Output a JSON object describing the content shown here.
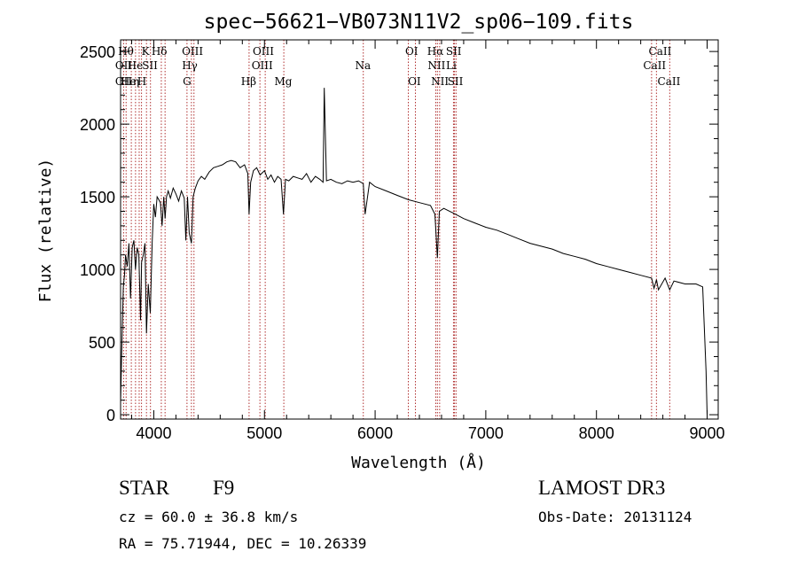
{
  "chart_data": {
    "type": "line",
    "title": "spec−56621−VB073N11V2_sp06−109.fits",
    "xlabel": "Wavelength (Å)",
    "ylabel": "Flux (relative)",
    "xlim": [
      3700,
      9100
    ],
    "ylim": [
      -30,
      2580
    ],
    "xticks": [
      4000,
      5000,
      6000,
      7000,
      8000,
      9000
    ],
    "yticks": [
      0,
      500,
      1000,
      1500,
      2000,
      2500
    ],
    "series": [
      {
        "name": "flux",
        "x": [
          3700,
          3710,
          3725,
          3735,
          3745,
          3760,
          3775,
          3790,
          3805,
          3820,
          3835,
          3850,
          3865,
          3880,
          3890,
          3905,
          3920,
          3934,
          3950,
          3968,
          3985,
          4000,
          4015,
          4030,
          4045,
          4060,
          4075,
          4090,
          4102,
          4115,
          4130,
          4150,
          4175,
          4200,
          4225,
          4250,
          4275,
          4290,
          4305,
          4320,
          4340,
          4355,
          4375,
          4400,
          4430,
          4460,
          4500,
          4540,
          4580,
          4620,
          4660,
          4700,
          4740,
          4780,
          4820,
          4850,
          4861,
          4875,
          4900,
          4930,
          4960,
          5000,
          5030,
          5060,
          5090,
          5120,
          5150,
          5172,
          5190,
          5220,
          5260,
          5300,
          5340,
          5380,
          5420,
          5460,
          5500,
          5530,
          5540,
          5560,
          5600,
          5650,
          5700,
          5750,
          5800,
          5850,
          5893,
          5910,
          5950,
          6000,
          6100,
          6200,
          6300,
          6400,
          6500,
          6540,
          6563,
          6580,
          6620,
          6700,
          6800,
          6900,
          7000,
          7100,
          7200,
          7300,
          7400,
          7500,
          7600,
          7700,
          7800,
          7900,
          8000,
          8100,
          8200,
          8300,
          8400,
          8498,
          8520,
          8542,
          8560,
          8620,
          8662,
          8700,
          8800,
          8900,
          8960,
          8990,
          9000
        ],
        "y": [
          80,
          420,
          880,
          960,
          1100,
          1020,
          1180,
          800,
          1150,
          1200,
          1000,
          1150,
          1100,
          650,
          1050,
          1100,
          1180,
          560,
          900,
          700,
          1180,
          1450,
          1360,
          1500,
          1480,
          1460,
          1300,
          1500,
          1350,
          1500,
          1540,
          1490,
          1560,
          1520,
          1470,
          1540,
          1490,
          1200,
          1500,
          1250,
          1180,
          1500,
          1560,
          1610,
          1640,
          1620,
          1670,
          1700,
          1710,
          1720,
          1740,
          1750,
          1740,
          1700,
          1720,
          1660,
          1380,
          1600,
          1680,
          1700,
          1650,
          1680,
          1620,
          1650,
          1600,
          1640,
          1620,
          1380,
          1620,
          1610,
          1640,
          1630,
          1620,
          1660,
          1600,
          1640,
          1620,
          1600,
          2250,
          1610,
          1620,
          1600,
          1590,
          1610,
          1600,
          1610,
          1590,
          1380,
          1600,
          1570,
          1540,
          1510,
          1480,
          1460,
          1440,
          1380,
          1080,
          1400,
          1420,
          1390,
          1350,
          1320,
          1290,
          1270,
          1240,
          1210,
          1180,
          1160,
          1140,
          1110,
          1090,
          1070,
          1040,
          1020,
          1000,
          980,
          960,
          940,
          870,
          930,
          860,
          940,
          860,
          920,
          900,
          900,
          880,
          300,
          0
        ]
      }
    ],
    "lines": [
      {
        "wave": 3727,
        "labels": [
          "OII",
          ""
        ]
      },
      {
        "wave": 3750,
        "labels": [
          "Hθ",
          ""
        ]
      },
      {
        "wave": 3797,
        "labels": [
          ""
        ]
      },
      {
        "wave": 3835,
        "labels": [
          "Hη",
          ""
        ]
      },
      {
        "wave": 3868,
        "labels": [
          "",
          "Ne"
        ]
      },
      {
        "wave": 3889,
        "labels": [
          "He",
          ""
        ]
      },
      {
        "wave": 3934,
        "labels": [
          "K"
        ]
      },
      {
        "wave": 3970,
        "labels": [
          "H"
        ]
      },
      {
        "wave": 4068,
        "labels": [
          "SII"
        ]
      },
      {
        "wave": 4102,
        "labels": [
          "Hδ"
        ]
      },
      {
        "wave": 4300,
        "labels": [
          "G"
        ]
      },
      {
        "wave": 4340,
        "labels": [
          "Hγ"
        ]
      },
      {
        "wave": 4363,
        "labels": [
          "OIII"
        ]
      },
      {
        "wave": 4861,
        "labels": [
          "Hβ"
        ]
      },
      {
        "wave": 4959,
        "labels": [
          "OIII"
        ]
      },
      {
        "wave": 5007,
        "labels": [
          "OIII"
        ]
      },
      {
        "wave": 5175,
        "labels": [
          "Mg"
        ]
      },
      {
        "wave": 5893,
        "labels": [
          "Na"
        ]
      },
      {
        "wave": 6300,
        "labels": [
          "OI"
        ]
      },
      {
        "wave": 6364,
        "labels": [
          "OI"
        ]
      },
      {
        "wave": 6548,
        "labels": [
          "NII"
        ]
      },
      {
        "wave": 6563,
        "labels": [
          "Hα"
        ]
      },
      {
        "wave": 6583,
        "labels": [
          "NII"
        ]
      },
      {
        "wave": 6708,
        "labels": [
          "Li"
        ]
      },
      {
        "wave": 6717,
        "labels": [
          "SII"
        ]
      },
      {
        "wave": 6731,
        "labels": [
          "SII"
        ]
      },
      {
        "wave": 8498,
        "labels": [
          "CaII"
        ]
      },
      {
        "wave": 8542,
        "labels": [
          "CaII"
        ]
      },
      {
        "wave": 8662,
        "labels": [
          "CaII"
        ]
      }
    ],
    "line_labels": [
      {
        "text": "Hθ",
        "wave": 3748,
        "row": 0
      },
      {
        "text": "K",
        "wave": 3925,
        "row": 0
      },
      {
        "text": "Hδ",
        "wave": 4050,
        "row": 0
      },
      {
        "text": "OIII",
        "wave": 4350,
        "row": 0
      },
      {
        "text": "OIII",
        "wave": 4990,
        "row": 0
      },
      {
        "text": "OI",
        "wave": 6330,
        "row": 0
      },
      {
        "text": "Hα",
        "wave": 6545,
        "row": 0
      },
      {
        "text": "SII",
        "wave": 6710,
        "row": 0
      },
      {
        "text": "CaII",
        "wave": 8575,
        "row": 0
      },
      {
        "text": "OII",
        "wave": 3728,
        "row": 1
      },
      {
        "text": "He",
        "wave": 3832,
        "row": 1
      },
      {
        "text": "SII",
        "wave": 3965,
        "row": 1
      },
      {
        "text": "Hγ",
        "wave": 4325,
        "row": 1
      },
      {
        "text": "OIII",
        "wave": 4980,
        "row": 1
      },
      {
        "text": "Na",
        "wave": 5890,
        "row": 1
      },
      {
        "text": "NII",
        "wave": 6555,
        "row": 1
      },
      {
        "text": "Li",
        "wave": 6688,
        "row": 1
      },
      {
        "text": "CaII",
        "wave": 8525,
        "row": 1
      },
      {
        "text": "OII",
        "wave": 3728,
        "row": 2
      },
      {
        "text": "He",
        "wave": 3770,
        "row": 2
      },
      {
        "text": "η",
        "wave": 3840,
        "row": 2
      },
      {
        "text": "H",
        "wave": 3892,
        "row": 2
      },
      {
        "text": "G",
        "wave": 4300,
        "row": 2
      },
      {
        "text": "Hβ",
        "wave": 4857,
        "row": 2
      },
      {
        "text": "Mg",
        "wave": 5170,
        "row": 2
      },
      {
        "text": "OI",
        "wave": 6355,
        "row": 2
      },
      {
        "text": "NII",
        "wave": 6585,
        "row": 2
      },
      {
        "text": "SII",
        "wave": 6725,
        "row": 2
      },
      {
        "text": "CaII",
        "wave": 8655,
        "row": 2
      }
    ]
  },
  "info": {
    "object_class": "STAR",
    "subclass": "F9",
    "survey": "LAMOST DR3",
    "redshift": "cz = 60.0 ± 36.8 km/s",
    "obs_date": "Obs-Date: 20131124",
    "coords": "RA =  75.71944, DEC =  10.26339"
  },
  "colors": {
    "line_marker": "#b03030",
    "spectrum": "#000000",
    "axis": "#000000"
  }
}
